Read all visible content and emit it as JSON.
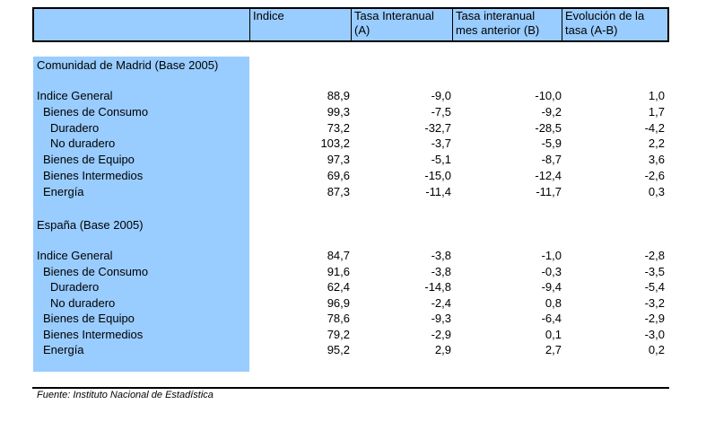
{
  "header": {
    "col0": "",
    "col1": "Indice",
    "col2": [
      "Tasa Interanual",
      "(A)"
    ],
    "col3": [
      "Tasa interanual",
      "mes anterior (B)"
    ],
    "col4": [
      "Evolución de la",
      "tasa (A-B)"
    ]
  },
  "colors": {
    "label_column_fill": "#99ccff",
    "header_fill": "#99ccff"
  },
  "sections": [
    {
      "title": "Comunidad de Madrid (Base 2005)",
      "rows": [
        {
          "label": "Indice General",
          "indent": 0,
          "v1": "88,9",
          "v2": "-9,0",
          "v3": "-10,0",
          "v4": "1,0"
        },
        {
          "label": "Bienes de Consumo",
          "indent": 1,
          "v1": "99,3",
          "v2": "-7,5",
          "v3": "-9,2",
          "v4": "1,7"
        },
        {
          "label": "Duradero",
          "indent": 2,
          "v1": "73,2",
          "v2": "-32,7",
          "v3": "-28,5",
          "v4": "-4,2"
        },
        {
          "label": "No duradero",
          "indent": 2,
          "v1": "103,2",
          "v2": "-3,7",
          "v3": "-5,9",
          "v4": "2,2"
        },
        {
          "label": "Bienes de Equipo",
          "indent": 1,
          "v1": "97,3",
          "v2": "-5,1",
          "v3": "-8,7",
          "v4": "3,6"
        },
        {
          "label": "Bienes Intermedios",
          "indent": 1,
          "v1": "69,6",
          "v2": "-15,0",
          "v3": "-12,4",
          "v4": "-2,6"
        },
        {
          "label": "Energía",
          "indent": 1,
          "v1": "87,3",
          "v2": "-11,4",
          "v3": "-11,7",
          "v4": "0,3"
        }
      ]
    },
    {
      "title": "España (Base 2005)",
      "rows": [
        {
          "label": "Indice General",
          "indent": 0,
          "v1": "84,7",
          "v2": "-3,8",
          "v3": "-1,0",
          "v4": "-2,8"
        },
        {
          "label": "Bienes de Consumo",
          "indent": 1,
          "v1": "91,6",
          "v2": "-3,8",
          "v3": "-0,3",
          "v4": "-3,5"
        },
        {
          "label": "Duradero",
          "indent": 2,
          "v1": "62,4",
          "v2": "-14,8",
          "v3": "-9,4",
          "v4": "-5,4"
        },
        {
          "label": "No duradero",
          "indent": 2,
          "v1": "96,9",
          "v2": "-2,4",
          "v3": "0,8",
          "v4": "-3,2"
        },
        {
          "label": "Bienes de Equipo",
          "indent": 1,
          "v1": "78,6",
          "v2": "-9,3",
          "v3": "-6,4",
          "v4": "-2,9"
        },
        {
          "label": "Bienes Intermedios",
          "indent": 1,
          "v1": "79,2",
          "v2": "-2,9",
          "v3": "0,1",
          "v4": "-3,0"
        },
        {
          "label": "Energía",
          "indent": 1,
          "v1": "95,2",
          "v2": "2,9",
          "v3": "2,7",
          "v4": "0,2"
        }
      ]
    }
  ],
  "footer": {
    "source": "Fuente: Instituto Nacional de Estadística"
  }
}
